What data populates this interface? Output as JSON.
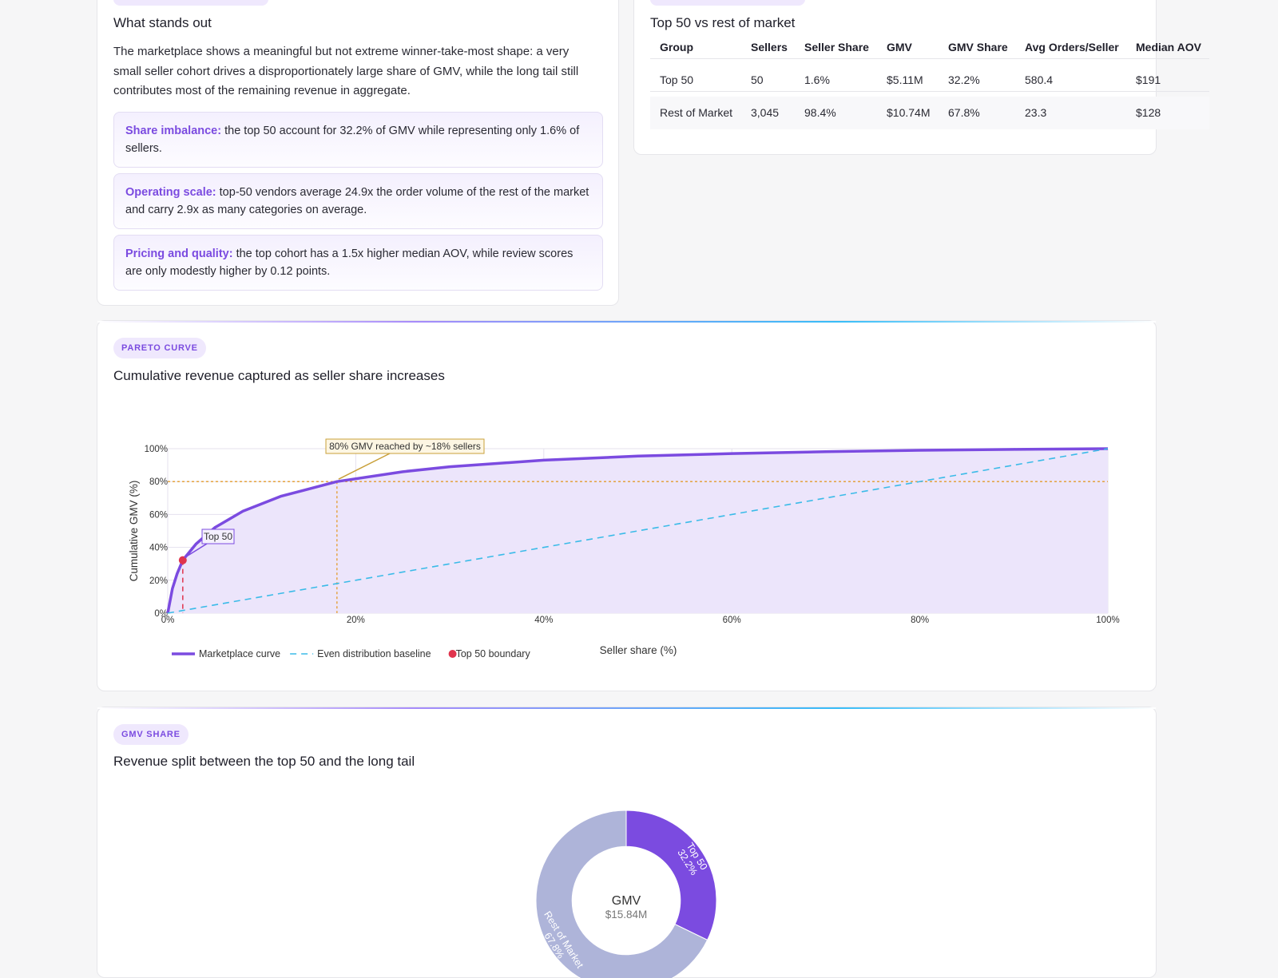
{
  "insights_card": {
    "title": "What stands out",
    "body": "The marketplace shows a meaningful but not extreme winner-take-most shape: a very small seller cohort drives a disproportionately large share of GMV, while the long tail still contributes most of the remaining revenue in aggregate.",
    "items": [
      {
        "label": "Share imbalance:",
        "text": "the top 50 account for 32.2% of GMV while representing only 1.6% of sellers."
      },
      {
        "label": "Operating scale:",
        "text": "top-50 vendors average 24.9x the order volume of the rest of the market and carry 2.9x as many categories on average."
      },
      {
        "label": "Pricing and quality:",
        "text": "the top cohort has a 1.5x higher median AOV, while review scores are only modestly higher by 0.12 points."
      }
    ]
  },
  "table_card": {
    "title": "Top 50 vs rest of market",
    "columns": [
      "Group",
      "Sellers",
      "Seller Share",
      "GMV",
      "GMV Share",
      "Avg Orders/Seller",
      "Median AOV"
    ],
    "rows": [
      [
        "Top 50",
        "50",
        "1.6%",
        "$5.11M",
        "32.2%",
        "580.4",
        "$191"
      ],
      [
        "Rest of Market",
        "3,045",
        "98.4%",
        "$10.74M",
        "67.8%",
        "23.3",
        "$128"
      ]
    ]
  },
  "pareto_card": {
    "tag": "PARETO CURVE",
    "title": "Cumulative revenue captured as seller share increases",
    "chart": {
      "type": "line",
      "xlabel": "Seller share (%)",
      "ylabel": "Cumulative GMV (%)",
      "xlim": [
        0,
        100
      ],
      "ylim": [
        0,
        100
      ],
      "xticks": [
        {
          "value": 0,
          "label": "0%"
        },
        {
          "value": 20,
          "label": "20%"
        },
        {
          "value": 40,
          "label": "40%"
        },
        {
          "value": 60,
          "label": "60%"
        },
        {
          "value": 80,
          "label": "80%"
        },
        {
          "value": 100,
          "label": "100%"
        }
      ],
      "yticks": [
        {
          "value": 0,
          "label": "0%"
        },
        {
          "value": 20,
          "label": "20%"
        },
        {
          "value": 40,
          "label": "40%"
        },
        {
          "value": 60,
          "label": "60%"
        },
        {
          "value": 80,
          "label": "80%"
        },
        {
          "value": 100,
          "label": "100%"
        }
      ],
      "grid": true,
      "series": [
        {
          "name": "Marketplace curve",
          "color": "#7b4be0",
          "style": "solid",
          "fill": "#ece5fb",
          "x": [
            0,
            0.5,
            1,
            1.6,
            3,
            5,
            8,
            12,
            18,
            25,
            30,
            40,
            50,
            60,
            70,
            80,
            90,
            100
          ],
          "values": [
            0,
            15,
            24,
            32.2,
            42,
            52,
            62,
            71,
            80,
            86,
            89,
            93,
            95.5,
            97,
            98.2,
            99,
            99.6,
            100
          ]
        },
        {
          "name": "Even distribution baseline",
          "color": "#3bbbe8",
          "style": "dash",
          "x": [
            0,
            100
          ],
          "values": [
            0,
            100
          ]
        },
        {
          "name": "Top 50 boundary",
          "color": "#e0344d",
          "style": "point",
          "x": [
            1.6
          ],
          "values": [
            32.2
          ]
        }
      ],
      "guides": [
        {
          "x": 18,
          "y": 80,
          "color": "#e39b2c"
        }
      ],
      "annotations": [
        {
          "text": "80% GMV reached by ~18% sellers",
          "x": 18,
          "y": 80,
          "color": "#c9a03a",
          "bg": "#fdf6e3"
        },
        {
          "text": "Top 50",
          "x": 1.6,
          "y": 32.2,
          "color": "#7b4be0",
          "bg": "#f4f0fe"
        }
      ]
    }
  },
  "share_card": {
    "tag": "GMV SHARE",
    "title": "Revenue split between the top 50 and the long tail",
    "chart": {
      "type": "pie",
      "categories": [
        "Top 50",
        "Rest of Market"
      ],
      "values": [
        32.2,
        67.8
      ],
      "value_labels": [
        "32.2%",
        "67.8%"
      ],
      "colors": [
        "#7b4be0",
        "#aeb4d9"
      ],
      "hole": 0.6,
      "center_label": "GMV",
      "center_value": "$15.84M"
    }
  }
}
